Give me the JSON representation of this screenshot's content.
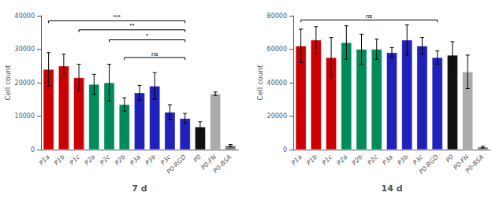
{
  "chart_data": [
    {
      "type": "bar",
      "categories": [
        "P1a",
        "P1b",
        "P1c",
        "P2a",
        "P2c",
        "P2b",
        "P3a",
        "P3b",
        "P3c",
        "P0-RGD",
        "P0",
        "P0-FN",
        "P0-BSA"
      ],
      "values": [
        24000,
        25000,
        21500,
        19500,
        20000,
        13500,
        17000,
        19000,
        11200,
        9300,
        6800,
        16700,
        1200
      ],
      "errors": [
        5000,
        3500,
        4000,
        3000,
        5500,
        2000,
        2200,
        4000,
        2200,
        1500,
        1500,
        500,
        300
      ],
      "colors": [
        "#cc0000",
        "#cc0000",
        "#cc0000",
        "#008c5a",
        "#008c5a",
        "#008c5a",
        "#2020bb",
        "#2020bb",
        "#2020bb",
        "#2020bb",
        "#111111",
        "#aaaaaa",
        "#777777"
      ],
      "ylabel": "Cell count",
      "xlabel": "7 d",
      "ylim": [
        0,
        40000
      ],
      "yticks": [
        0,
        10000,
        20000,
        30000,
        40000
      ],
      "grid": false,
      "annotations": [
        {
          "text": "***",
          "from": "P1a",
          "to": "P0-RGD",
          "y": 38500
        },
        {
          "text": "**",
          "from": "P1c",
          "to": "P0-RGD",
          "y": 35800
        },
        {
          "text": "*",
          "from": "P2c",
          "to": "P0-RGD",
          "y": 32800
        },
        {
          "text": "ns",
          "from": "P2b",
          "to": "P0-RGD",
          "y": 27500
        }
      ]
    },
    {
      "type": "bar",
      "categories": [
        "P1a",
        "P1b",
        "P1c",
        "P2a",
        "P2b",
        "P2c",
        "P3a",
        "P3b",
        "P3c",
        "P0-RGD",
        "P0",
        "P0-FN",
        "P0-BSA"
      ],
      "values": [
        62000,
        65500,
        55000,
        64000,
        60000,
        60000,
        58000,
        65500,
        62000,
        55000,
        56500,
        46500,
        1500
      ],
      "errors": [
        10000,
        8000,
        12000,
        10000,
        9000,
        6000,
        3000,
        9000,
        5000,
        4000,
        8000,
        10000,
        500
      ],
      "colors": [
        "#cc0000",
        "#cc0000",
        "#cc0000",
        "#008c5a",
        "#008c5a",
        "#008c5a",
        "#2020bb",
        "#2020bb",
        "#2020bb",
        "#2020bb",
        "#111111",
        "#aaaaaa",
        "#777777"
      ],
      "ylabel": "Cell count",
      "xlabel": "14 d",
      "ylim": [
        0,
        80000
      ],
      "yticks": [
        0,
        20000,
        40000,
        60000,
        80000
      ],
      "grid": false,
      "annotations": [
        {
          "text": "ns",
          "from": "P1a",
          "to": "P0-RGD",
          "y": 77500
        }
      ]
    }
  ]
}
